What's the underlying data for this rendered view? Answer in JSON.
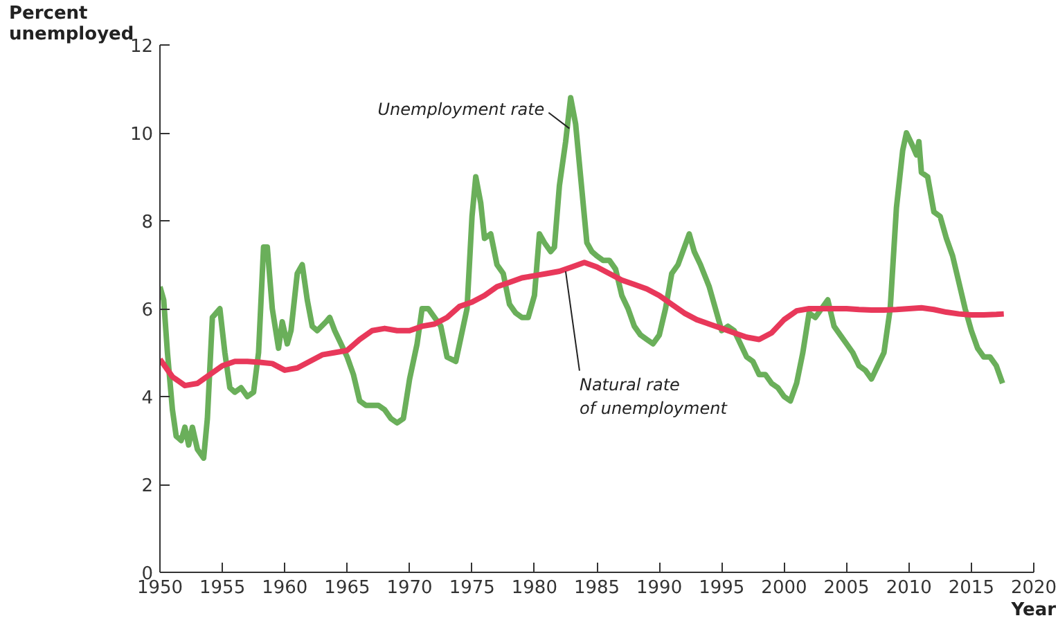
{
  "chart_data": {
    "type": "line",
    "ylabel": "Percent unemployed",
    "xlabel": "Year",
    "xlim": [
      1950,
      2020
    ],
    "xticks": [
      1950,
      1955,
      1960,
      1965,
      1970,
      1975,
      1980,
      1985,
      1990,
      1995,
      2000,
      2005,
      2010,
      2015,
      2020
    ],
    "ylim": [
      0,
      12
    ],
    "yticks": [
      0,
      2,
      4,
      6,
      8,
      10,
      12
    ],
    "grid": false,
    "annotations": [
      {
        "text": "Unemployment rate",
        "x": 1982.8,
        "y": 10.1
      },
      {
        "text": "Natural rate of unemployment",
        "x": 1982.5,
        "y": 6.85
      }
    ],
    "series": [
      {
        "color": "#6aaf5a",
        "x": [
          1950.0,
          1950.3,
          1950.6,
          1951.0,
          1951.3,
          1951.7,
          1952.0,
          1952.3,
          1952.6,
          1953.0,
          1953.5,
          1953.8,
          1954.2,
          1954.5,
          1954.8,
          1955.2,
          1955.6,
          1956.0,
          1956.5,
          1957.0,
          1957.5,
          1957.9,
          1958.3,
          1958.6,
          1959.0,
          1959.5,
          1959.8,
          1960.2,
          1960.5,
          1961.0,
          1961.4,
          1961.8,
          1962.2,
          1962.6,
          1963.3,
          1963.6,
          1964.0,
          1964.5,
          1965.0,
          1965.5,
          1966.0,
          1966.5,
          1967.0,
          1967.5,
          1968.0,
          1968.5,
          1969.0,
          1969.5,
          1970.0,
          1970.6,
          1971.0,
          1971.5,
          1972.0,
          1972.5,
          1973.0,
          1973.7,
          1974.0,
          1974.6,
          1975.0,
          1975.3,
          1975.7,
          1976.0,
          1976.5,
          1977.0,
          1977.5,
          1978.0,
          1978.5,
          1979.0,
          1979.5,
          1980.0,
          1980.4,
          1980.8,
          1981.3,
          1981.6,
          1982.0,
          1982.5,
          1982.9,
          1983.3,
          1983.7,
          1984.2,
          1984.6,
          1985.0,
          1985.5,
          1986.0,
          1986.5,
          1987.0,
          1987.5,
          1988.0,
          1988.5,
          1989.0,
          1989.5,
          1990.0,
          1990.5,
          1991.0,
          1991.5,
          1992.4,
          1992.8,
          1993.3,
          1994.0,
          1994.5,
          1995.0,
          1995.5,
          1996.0,
          1996.5,
          1997.0,
          1997.5,
          1998.0,
          1998.5,
          1999.0,
          1999.5,
          2000.0,
          2000.5,
          2001.0,
          2001.5,
          2002.0,
          2002.5,
          2003.0,
          2003.5,
          2004.0,
          2004.5,
          2005.0,
          2005.5,
          2006.0,
          2006.5,
          2007.0,
          2007.5,
          2008.0,
          2008.5,
          2009.0,
          2009.5,
          2009.8,
          2010.3,
          2010.6,
          2010.8,
          2011.0,
          2011.5,
          2012.0,
          2012.5,
          2013.0,
          2013.5,
          2014.0,
          2014.5,
          2015.0,
          2015.5,
          2016.0,
          2016.5,
          2017.0,
          2017.5
        ],
        "values": [
          6.5,
          6.2,
          5.0,
          3.7,
          3.1,
          3.0,
          3.3,
          2.9,
          3.3,
          2.8,
          2.6,
          3.5,
          5.8,
          5.9,
          6.0,
          5.0,
          4.2,
          4.1,
          4.2,
          4.0,
          4.1,
          5.0,
          7.4,
          7.4,
          6.0,
          5.1,
          5.7,
          5.2,
          5.5,
          6.8,
          7.0,
          6.2,
          5.6,
          5.5,
          5.7,
          5.8,
          5.5,
          5.2,
          4.9,
          4.5,
          3.9,
          3.8,
          3.8,
          3.8,
          3.7,
          3.5,
          3.4,
          3.5,
          4.4,
          5.2,
          6.0,
          6.0,
          5.8,
          5.6,
          4.9,
          4.8,
          5.2,
          6.0,
          8.1,
          9.0,
          8.4,
          7.6,
          7.7,
          7.0,
          6.8,
          6.1,
          5.9,
          5.8,
          5.8,
          6.3,
          7.7,
          7.5,
          7.3,
          7.4,
          8.8,
          9.8,
          10.8,
          10.2,
          9.0,
          7.5,
          7.3,
          7.2,
          7.1,
          7.1,
          6.9,
          6.3,
          6.0,
          5.6,
          5.4,
          5.3,
          5.2,
          5.4,
          6.0,
          6.8,
          7.0,
          7.7,
          7.3,
          7.0,
          6.5,
          6.0,
          5.5,
          5.6,
          5.5,
          5.2,
          4.9,
          4.8,
          4.5,
          4.5,
          4.3,
          4.2,
          4.0,
          3.9,
          4.3,
          5.0,
          5.9,
          5.8,
          6.0,
          6.2,
          5.6,
          5.4,
          5.2,
          5.0,
          4.7,
          4.6,
          4.4,
          4.7,
          5.0,
          6.0,
          8.3,
          9.6,
          10.0,
          9.7,
          9.5,
          9.8,
          9.1,
          9.0,
          8.2,
          8.1,
          7.6,
          7.2,
          6.6,
          6.0,
          5.5,
          5.1,
          4.9,
          4.9,
          4.7,
          4.3
        ]
      },
      {
        "color": "#e8385a",
        "x": [
          1950,
          1951,
          1952,
          1953,
          1954,
          1955,
          1956,
          1957,
          1958,
          1959,
          1960,
          1961,
          1962,
          1963,
          1964,
          1965,
          1966,
          1967,
          1968,
          1969,
          1970,
          1971,
          1972,
          1973,
          1974,
          1975,
          1976,
          1977,
          1978,
          1979,
          1980,
          1981,
          1982,
          1983,
          1984,
          1985,
          1986,
          1987,
          1988,
          1989,
          1990,
          1991,
          1992,
          1993,
          1994,
          1995,
          1996,
          1997,
          1998,
          1999,
          2000,
          2001,
          2002,
          2003,
          2004,
          2005,
          2006,
          2007,
          2008,
          2009,
          2010,
          2011,
          2012,
          2013,
          2014,
          2015,
          2016,
          2017,
          2017.6
        ],
        "values": [
          4.85,
          4.45,
          4.25,
          4.3,
          4.5,
          4.7,
          4.8,
          4.8,
          4.78,
          4.75,
          4.6,
          4.65,
          4.8,
          4.95,
          5.0,
          5.05,
          5.3,
          5.5,
          5.55,
          5.5,
          5.5,
          5.6,
          5.65,
          5.8,
          6.05,
          6.15,
          6.3,
          6.5,
          6.6,
          6.7,
          6.75,
          6.8,
          6.85,
          6.95,
          7.05,
          6.95,
          6.8,
          6.65,
          6.55,
          6.45,
          6.3,
          6.1,
          5.9,
          5.75,
          5.65,
          5.55,
          5.45,
          5.35,
          5.3,
          5.45,
          5.75,
          5.95,
          6.0,
          6.0,
          6.0,
          6.0,
          5.98,
          5.97,
          5.97,
          5.98,
          6.0,
          6.02,
          5.98,
          5.92,
          5.88,
          5.86,
          5.86,
          5.87,
          5.88
        ]
      }
    ]
  }
}
